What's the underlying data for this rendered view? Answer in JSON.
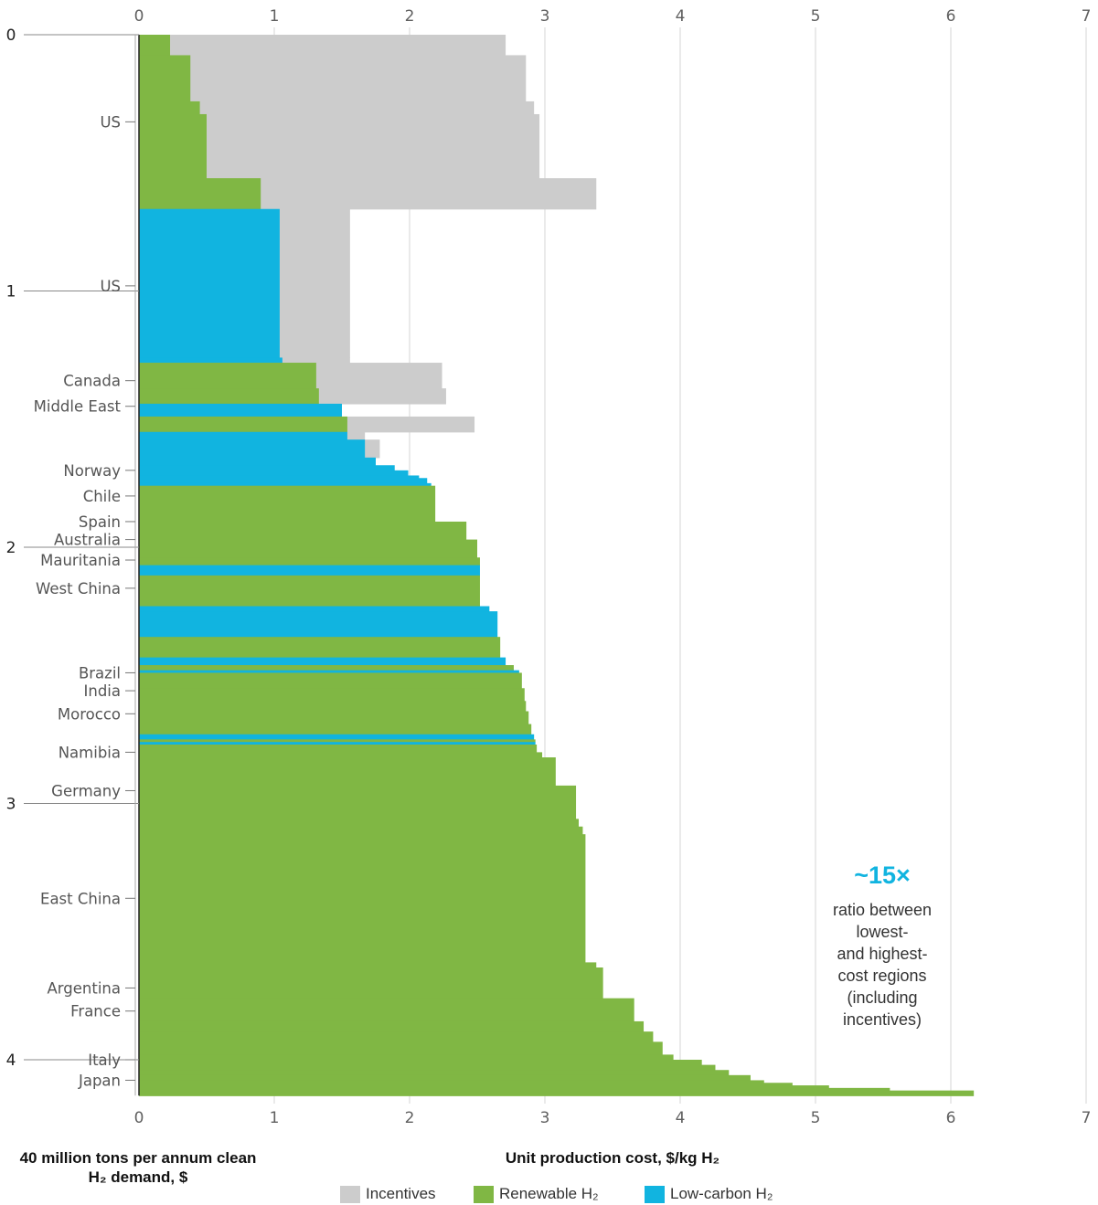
{
  "chart_data": {
    "type": "bar",
    "orientation": "horizontal-stepped",
    "xlabel": "Unit production cost, $/kg H₂",
    "ylabel": "40 million tons per annum clean H₂ demand, $",
    "xlim": [
      0,
      7
    ],
    "ylim": [
      0,
      4.14
    ],
    "x_ticks": [
      "0",
      "1",
      "2",
      "3",
      "4",
      "5",
      "6",
      "7"
    ],
    "y_ticks": [
      "0",
      "1",
      "2",
      "3",
      "4"
    ],
    "grid": "vertical",
    "legend": {
      "placement": "bottom",
      "entries": [
        {
          "label": "Incentives",
          "color": "#cccccc"
        },
        {
          "label": "Renewable H₂",
          "color": "#80b744"
        },
        {
          "label": "Low-carbon H₂",
          "color": "#11b4e0"
        }
      ]
    },
    "colors": {
      "Incentives": "#cccccc",
      "Renewable": "#80b744",
      "Low-carbon": "#11b4e0"
    },
    "annotation": {
      "value": "~15×",
      "text": [
        "ratio between",
        "lowest-",
        "and highest-",
        "cost regions",
        "(including",
        "incentives)"
      ]
    },
    "regions": [
      {
        "label": "US",
        "y": 0.34
      },
      {
        "label": "US",
        "y": 0.98
      },
      {
        "label": "Canada",
        "y": 1.35
      },
      {
        "label": "Middle East",
        "y": 1.45
      },
      {
        "label": "Norway",
        "y": 1.7
      },
      {
        "label": "Chile",
        "y": 1.8
      },
      {
        "label": "Spain",
        "y": 1.9
      },
      {
        "label": "Australia",
        "y": 1.97
      },
      {
        "label": "Mauritania",
        "y": 2.05
      },
      {
        "label": "West China",
        "y": 2.16
      },
      {
        "label": "Brazil",
        "y": 2.49
      },
      {
        "label": "India",
        "y": 2.56
      },
      {
        "label": "Morocco",
        "y": 2.65
      },
      {
        "label": "Namibia",
        "y": 2.8
      },
      {
        "label": "Germany",
        "y": 2.95
      },
      {
        "label": "East China",
        "y": 3.37
      },
      {
        "label": "Argentina",
        "y": 3.72
      },
      {
        "label": "France",
        "y": 3.81
      },
      {
        "label": "Italy",
        "y": 4.0
      },
      {
        "label": "Japan",
        "y": 4.08
      }
    ],
    "bars": [
      {
        "y0": 0.0,
        "y1": 0.08,
        "type": "Renewable",
        "cost": 0.23,
        "with_incentives": 2.71
      },
      {
        "y0": 0.08,
        "y1": 0.26,
        "type": "Renewable",
        "cost": 0.38,
        "with_incentives": 2.86
      },
      {
        "y0": 0.26,
        "y1": 0.31,
        "type": "Renewable",
        "cost": 0.45,
        "with_incentives": 2.92
      },
      {
        "y0": 0.31,
        "y1": 0.56,
        "type": "Renewable",
        "cost": 0.5,
        "with_incentives": 2.96
      },
      {
        "y0": 0.56,
        "y1": 0.68,
        "type": "Renewable",
        "cost": 0.9,
        "with_incentives": 3.38
      },
      {
        "y0": 0.68,
        "y1": 1.26,
        "type": "Low-carbon",
        "cost": 1.04,
        "with_incentives": 1.56
      },
      {
        "y0": 1.26,
        "y1": 1.28,
        "type": "Low-carbon",
        "cost": 1.06,
        "with_incentives": 1.56
      },
      {
        "y0": 1.28,
        "y1": 1.38,
        "type": "Renewable",
        "cost": 1.31,
        "with_incentives": 2.24
      },
      {
        "y0": 1.38,
        "y1": 1.44,
        "type": "Renewable",
        "cost": 1.33,
        "with_incentives": 2.27
      },
      {
        "y0": 1.44,
        "y1": 1.49,
        "type": "Low-carbon",
        "cost": 1.5
      },
      {
        "y0": 1.49,
        "y1": 1.51,
        "type": "Renewable",
        "cost": 1.54,
        "with_incentives": 2.48
      },
      {
        "y0": 1.51,
        "y1": 1.55,
        "type": "Renewable",
        "cost": 1.54,
        "with_incentives": 2.48
      },
      {
        "y0": 1.55,
        "y1": 1.58,
        "type": "Low-carbon",
        "cost": 1.54,
        "with_incentives": 1.67
      },
      {
        "y0": 1.58,
        "y1": 1.65,
        "type": "Low-carbon",
        "cost": 1.67,
        "with_incentives": 1.78
      },
      {
        "y0": 1.65,
        "y1": 1.68,
        "type": "Low-carbon",
        "cost": 1.75
      },
      {
        "y0": 1.68,
        "y1": 1.7,
        "type": "Low-carbon",
        "cost": 1.89
      },
      {
        "y0": 1.7,
        "y1": 1.72,
        "type": "Low-carbon",
        "cost": 1.99
      },
      {
        "y0": 1.72,
        "y1": 1.73,
        "type": "Low-carbon",
        "cost": 2.07
      },
      {
        "y0": 1.73,
        "y1": 1.75,
        "type": "Low-carbon",
        "cost": 2.13
      },
      {
        "y0": 1.75,
        "y1": 1.76,
        "type": "Low-carbon",
        "cost": 2.16
      },
      {
        "y0": 1.76,
        "y1": 1.9,
        "type": "Renewable",
        "cost": 2.19
      },
      {
        "y0": 1.9,
        "y1": 1.97,
        "type": "Renewable",
        "cost": 2.42
      },
      {
        "y0": 1.97,
        "y1": 2.04,
        "type": "Renewable",
        "cost": 2.5
      },
      {
        "y0": 2.04,
        "y1": 2.07,
        "type": "Renewable",
        "cost": 2.52
      },
      {
        "y0": 2.07,
        "y1": 2.11,
        "type": "Low-carbon",
        "cost": 2.52
      },
      {
        "y0": 2.11,
        "y1": 2.23,
        "type": "Renewable",
        "cost": 2.52
      },
      {
        "y0": 2.23,
        "y1": 2.25,
        "type": "Low-carbon",
        "cost": 2.59
      },
      {
        "y0": 2.25,
        "y1": 2.35,
        "type": "Low-carbon",
        "cost": 2.65
      },
      {
        "y0": 2.35,
        "y1": 2.43,
        "type": "Renewable",
        "cost": 2.67
      },
      {
        "y0": 2.43,
        "y1": 2.46,
        "type": "Low-carbon",
        "cost": 2.71
      },
      {
        "y0": 2.46,
        "y1": 2.48,
        "type": "Renewable",
        "cost": 2.77
      },
      {
        "y0": 2.48,
        "y1": 2.49,
        "type": "Low-carbon",
        "cost": 2.81
      },
      {
        "y0": 2.49,
        "y1": 2.55,
        "type": "Renewable",
        "cost": 2.83
      },
      {
        "y0": 2.55,
        "y1": 2.6,
        "type": "Renewable",
        "cost": 2.85
      },
      {
        "y0": 2.6,
        "y1": 2.64,
        "type": "Renewable",
        "cost": 2.86
      },
      {
        "y0": 2.64,
        "y1": 2.69,
        "type": "Renewable",
        "cost": 2.88
      },
      {
        "y0": 2.69,
        "y1": 2.73,
        "type": "Renewable",
        "cost": 2.9
      },
      {
        "y0": 2.73,
        "y1": 2.75,
        "type": "Low-carbon",
        "cost": 2.92
      },
      {
        "y0": 2.75,
        "y1": 2.76,
        "type": "Renewable",
        "cost": 2.93
      },
      {
        "y0": 2.76,
        "y1": 2.77,
        "type": "Low-carbon",
        "cost": 2.93
      },
      {
        "y0": 2.77,
        "y1": 2.8,
        "type": "Renewable",
        "cost": 2.94
      },
      {
        "y0": 2.8,
        "y1": 2.82,
        "type": "Renewable",
        "cost": 2.98
      },
      {
        "y0": 2.82,
        "y1": 2.93,
        "type": "Renewable",
        "cost": 3.08
      },
      {
        "y0": 2.93,
        "y1": 3.06,
        "type": "Renewable",
        "cost": 3.23
      },
      {
        "y0": 3.06,
        "y1": 3.09,
        "type": "Renewable",
        "cost": 3.25
      },
      {
        "y0": 3.09,
        "y1": 3.12,
        "type": "Renewable",
        "cost": 3.28
      },
      {
        "y0": 3.12,
        "y1": 3.62,
        "type": "Renewable",
        "cost": 3.3
      },
      {
        "y0": 3.62,
        "y1": 3.64,
        "type": "Renewable",
        "cost": 3.38
      },
      {
        "y0": 3.64,
        "y1": 3.76,
        "type": "Renewable",
        "cost": 3.43
      },
      {
        "y0": 3.76,
        "y1": 3.85,
        "type": "Renewable",
        "cost": 3.66
      },
      {
        "y0": 3.85,
        "y1": 3.89,
        "type": "Renewable",
        "cost": 3.73
      },
      {
        "y0": 3.89,
        "y1": 3.93,
        "type": "Renewable",
        "cost": 3.8
      },
      {
        "y0": 3.93,
        "y1": 3.98,
        "type": "Renewable",
        "cost": 3.87
      },
      {
        "y0": 3.98,
        "y1": 4.0,
        "type": "Renewable",
        "cost": 3.95
      },
      {
        "y0": 4.0,
        "y1": 4.02,
        "type": "Renewable",
        "cost": 4.16
      },
      {
        "y0": 4.02,
        "y1": 4.04,
        "type": "Renewable",
        "cost": 4.26
      },
      {
        "y0": 4.04,
        "y1": 4.06,
        "type": "Renewable",
        "cost": 4.36
      },
      {
        "y0": 4.06,
        "y1": 4.08,
        "type": "Renewable",
        "cost": 4.52
      },
      {
        "y0": 4.08,
        "y1": 4.09,
        "type": "Renewable",
        "cost": 4.62
      },
      {
        "y0": 4.09,
        "y1": 4.1,
        "type": "Renewable",
        "cost": 4.83
      },
      {
        "y0": 4.1,
        "y1": 4.11,
        "type": "Renewable",
        "cost": 5.1
      },
      {
        "y0": 4.11,
        "y1": 4.12,
        "type": "Renewable",
        "cost": 5.55
      },
      {
        "y0": 4.12,
        "y1": 4.14,
        "type": "Renewable",
        "cost": 6.17
      }
    ]
  }
}
